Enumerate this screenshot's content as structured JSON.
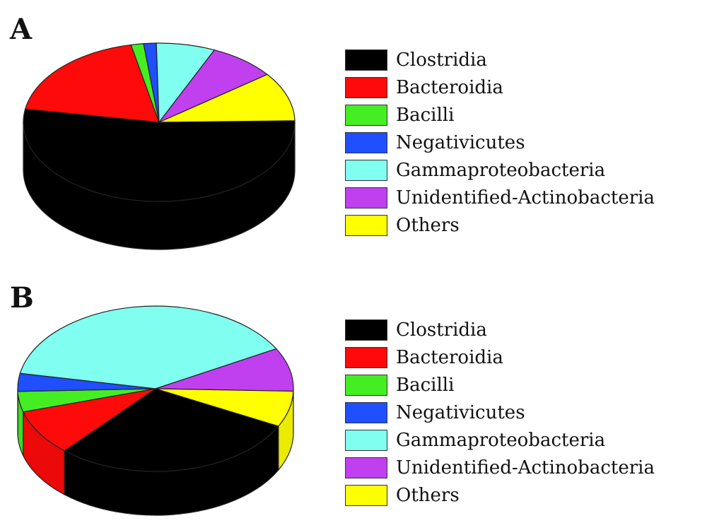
{
  "chart_data": [
    {
      "type": "pie",
      "panel": "A",
      "categories": [
        "Clostridia",
        "Bacteroidia",
        "Bacilli",
        "Negativicutes",
        "Gammaproteobacteria",
        "Unidentified-Actinobacteria",
        "Others"
      ],
      "values": [
        53,
        19,
        1.5,
        1.5,
        7,
        8,
        10
      ],
      "colors": [
        "#000000",
        "#ff0a0a",
        "#44ee22",
        "#1f4fff",
        "#80fff0",
        "#c040f0",
        "#ffff00"
      ]
    },
    {
      "type": "pie",
      "panel": "B",
      "categories": [
        "Clostridia",
        "Bacteroidia",
        "Bacilli",
        "Negativicutes",
        "Gammaproteobacteria",
        "Unidentified-Actinobacteria",
        "Others"
      ],
      "values": [
        29,
        9,
        4,
        3.5,
        39,
        8.5,
        7
      ],
      "colors": [
        "#000000",
        "#ff0a0a",
        "#44ee22",
        "#1f4fff",
        "#80fff0",
        "#c040f0",
        "#ffff00"
      ]
    }
  ]
}
